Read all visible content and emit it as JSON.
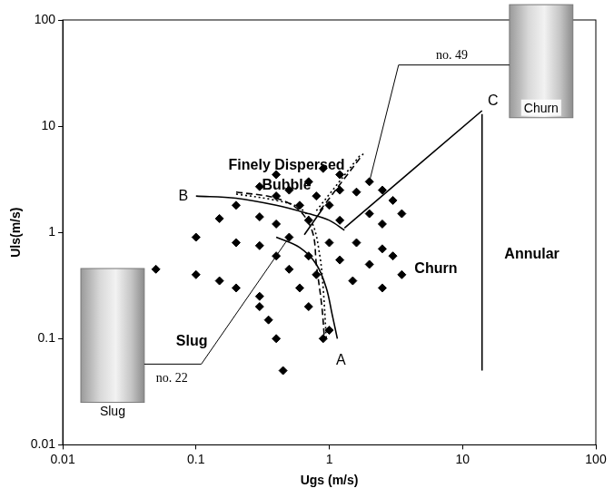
{
  "chart_data": {
    "type": "scatter",
    "x_label": "Ugs (m/s)",
    "y_label": "Uls(m/s)",
    "log": true,
    "grid": false,
    "xlim": [
      0.01,
      100
    ],
    "ylim": [
      0.01,
      100
    ],
    "xticks": [
      0.01,
      0.1,
      1,
      10,
      100
    ],
    "yticks": [
      0.01,
      0.1,
      1,
      10,
      100
    ],
    "series": [
      {
        "type": "scatter",
        "marker": "diamond",
        "color": "#000000",
        "points": [
          [
            0.05,
            0.45
          ],
          [
            0.1,
            0.9
          ],
          [
            0.1,
            0.4
          ],
          [
            0.15,
            1.35
          ],
          [
            0.15,
            0.35
          ],
          [
            0.2,
            1.8
          ],
          [
            0.2,
            0.8
          ],
          [
            0.2,
            0.3
          ],
          [
            0.3,
            2.7
          ],
          [
            0.3,
            1.4
          ],
          [
            0.3,
            0.75
          ],
          [
            0.3,
            0.25
          ],
          [
            0.3,
            0.2
          ],
          [
            0.35,
            0.15
          ],
          [
            0.4,
            3.5
          ],
          [
            0.4,
            2.2
          ],
          [
            0.4,
            1.2
          ],
          [
            0.4,
            0.6
          ],
          [
            0.4,
            0.1
          ],
          [
            0.45,
            0.05
          ],
          [
            0.5,
            2.5
          ],
          [
            0.5,
            0.9
          ],
          [
            0.5,
            0.45
          ],
          [
            0.6,
            1.8
          ],
          [
            0.6,
            0.3
          ],
          [
            0.7,
            3.0
          ],
          [
            0.7,
            1.3
          ],
          [
            0.7,
            0.6
          ],
          [
            0.7,
            0.2
          ],
          [
            0.8,
            2.2
          ],
          [
            0.8,
            0.4
          ],
          [
            0.9,
            4.0
          ],
          [
            0.9,
            0.1
          ],
          [
            1.0,
            1.8
          ],
          [
            1.0,
            0.8
          ],
          [
            1.0,
            0.12
          ],
          [
            1.2,
            3.5
          ],
          [
            1.2,
            2.5
          ],
          [
            1.2,
            1.3
          ],
          [
            1.2,
            0.55
          ],
          [
            1.5,
            0.35
          ],
          [
            1.6,
            2.4
          ],
          [
            1.6,
            0.8
          ],
          [
            2.0,
            1.5
          ],
          [
            2.0,
            0.5
          ],
          [
            2.0,
            3.0
          ],
          [
            2.5,
            2.5
          ],
          [
            2.5,
            1.2
          ],
          [
            2.5,
            0.7
          ],
          [
            2.5,
            0.3
          ],
          [
            3.0,
            2.0
          ],
          [
            3.0,
            0.6
          ],
          [
            3.5,
            1.5
          ],
          [
            3.5,
            0.4
          ]
        ]
      },
      {
        "name": "B",
        "type": "line",
        "line_style": "solid",
        "color": "#000000",
        "points": [
          [
            0.1,
            2.2
          ],
          [
            0.2,
            2.1
          ],
          [
            0.4,
            1.8
          ],
          [
            0.7,
            1.5
          ],
          [
            1.0,
            1.3
          ],
          [
            1.3,
            1.05
          ]
        ]
      },
      {
        "name": "A",
        "type": "line",
        "line_style": "solid",
        "color": "#000000",
        "points": [
          [
            0.4,
            0.9
          ],
          [
            0.6,
            0.72
          ],
          [
            0.8,
            0.5
          ],
          [
            0.95,
            0.3
          ],
          [
            1.05,
            0.17
          ],
          [
            1.15,
            0.1
          ]
        ]
      },
      {
        "type": "line",
        "line_style": "dotted",
        "color": "#000000",
        "points": [
          [
            0.2,
            2.3
          ],
          [
            0.4,
            2.0
          ],
          [
            0.6,
            1.7
          ],
          [
            0.75,
            1.2
          ],
          [
            0.85,
            0.6
          ],
          [
            0.9,
            0.3
          ],
          [
            0.95,
            0.1
          ]
        ]
      },
      {
        "type": "line",
        "line_style": "dashed",
        "color": "#000000",
        "points": [
          [
            0.2,
            2.4
          ],
          [
            0.4,
            2.1
          ],
          [
            0.6,
            1.6
          ],
          [
            0.75,
            1.0
          ],
          [
            0.8,
            0.5
          ],
          [
            0.88,
            0.2
          ],
          [
            0.92,
            0.1
          ]
        ]
      },
      {
        "type": "line",
        "line_style": "dashed",
        "color": "#000000",
        "points": [
          [
            0.85,
            1.6
          ],
          [
            1.8,
            5.5
          ]
        ]
      },
      {
        "type": "line",
        "line_style": "dotted",
        "color": "#000000",
        "points": [
          [
            0.8,
            1.6
          ],
          [
            1.7,
            5.3
          ]
        ]
      },
      {
        "type": "line",
        "line_style": "solid",
        "color": "#000000",
        "points": [
          [
            0.65,
            0.95
          ],
          [
            0.9,
            1.7
          ]
        ]
      },
      {
        "name": "C",
        "type": "line",
        "line_style": "solid",
        "color": "#000000",
        "points": [
          [
            1.3,
            1.1
          ],
          [
            14,
            14
          ]
        ]
      },
      {
        "type": "line",
        "line_style": "solid",
        "color": "#000000",
        "points": [
          [
            14,
            0.05
          ],
          [
            14,
            13
          ]
        ]
      }
    ],
    "annotations": [
      {
        "text": [
          "Finely Dispersed",
          "Bubble"
        ]
      },
      {
        "text": "Slug"
      },
      {
        "text": "Churn"
      },
      {
        "text": "Annular"
      },
      {
        "text": "no. 22",
        "target": [
          0.5,
          0.9
        ],
        "photo_caption": "Slug"
      },
      {
        "text": "no. 49",
        "target": [
          2.0,
          3.0
        ],
        "photo_caption": "Churn"
      }
    ]
  }
}
